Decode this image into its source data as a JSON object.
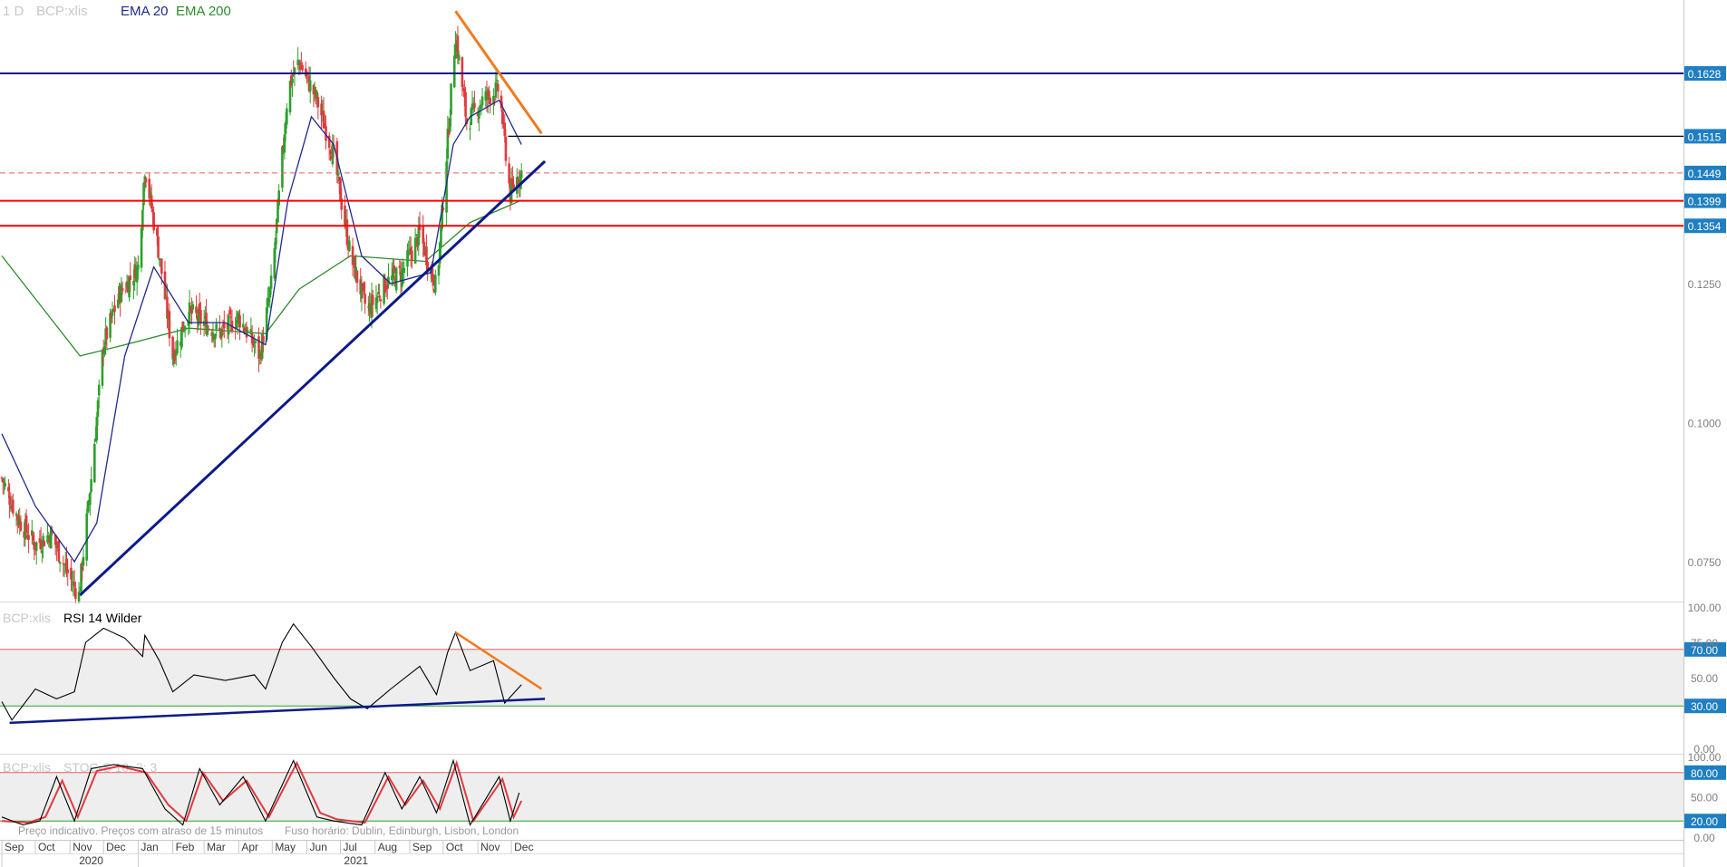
{
  "colors": {
    "up": "#2ca02c",
    "down": "#e0393e",
    "ema20": "#1f2a8a",
    "ema200": "#2e8b2e",
    "support_line": "#0b1a8a",
    "resistance_red": "#ff0000",
    "orange_trend": "#f07a20",
    "price_badge": "#1f7fc1",
    "osc_band": "#eeeeee",
    "rsi_line": "#000000",
    "stoch_k": "#000000",
    "stoch_d": "#e0393e"
  },
  "chart_data": [
    {
      "type": "candlestick",
      "panel": "price",
      "interval_label": "1 D",
      "symbol": "BCP:xlis",
      "indicators": [
        "EMA 20",
        "EMA 200"
      ],
      "ylim": [
        0.068,
        0.176
      ],
      "y_ticks": [
        "0.0750",
        "0.1000",
        "0.1250"
      ],
      "price_levels": [
        {
          "value": 0.1628,
          "label": "0.1628",
          "style": "solid",
          "color": "#0b1a8a"
        },
        {
          "value": 0.1515,
          "label": "0.1515",
          "style": "badge",
          "color": "#1f7fc1"
        },
        {
          "value": 0.1449,
          "label": "0.1449",
          "style": "dashed",
          "color": "#e06060"
        },
        {
          "value": 0.1399,
          "label": "0.1399",
          "style": "solid",
          "color": "#ff0000"
        },
        {
          "value": 0.1354,
          "label": "0.1354",
          "style": "solid",
          "color": "#ff0000"
        }
      ],
      "months": [
        "Sep",
        "Oct",
        "Nov",
        "Dec",
        "Jan",
        "Feb",
        "Mar",
        "Apr",
        "May",
        "Jun",
        "Jul",
        "Aug",
        "Sep",
        "Oct",
        "Nov",
        "Dec"
      ],
      "years": [
        "2020",
        "2021"
      ],
      "close_path": [
        [
          "2020-09-01",
          0.09
        ],
        [
          "2020-09-15",
          0.083
        ],
        [
          "2020-10-01",
          0.078
        ],
        [
          "2020-10-15",
          0.08
        ],
        [
          "2020-11-01",
          0.072
        ],
        [
          "2020-11-09",
          0.069
        ],
        [
          "2020-11-20",
          0.09
        ],
        [
          "2020-12-01",
          0.114
        ],
        [
          "2020-12-15",
          0.123
        ],
        [
          "2021-01-01",
          0.128
        ],
        [
          "2021-01-07",
          0.146
        ],
        [
          "2021-01-20",
          0.13
        ],
        [
          "2021-02-01",
          0.112
        ],
        [
          "2021-02-15",
          0.12
        ],
        [
          "2021-03-01",
          0.118
        ],
        [
          "2021-03-15",
          0.116
        ],
        [
          "2021-04-01",
          0.119
        ],
        [
          "2021-04-20",
          0.112
        ],
        [
          "2021-05-01",
          0.126
        ],
        [
          "2021-05-15",
          0.16
        ],
        [
          "2021-05-25",
          0.165
        ],
        [
          "2021-06-10",
          0.158
        ],
        [
          "2021-06-25",
          0.148
        ],
        [
          "2021-07-10",
          0.13
        ],
        [
          "2021-07-25",
          0.12
        ],
        [
          "2021-08-10",
          0.125
        ],
        [
          "2021-08-25",
          0.127
        ],
        [
          "2021-09-10",
          0.134
        ],
        [
          "2021-09-25",
          0.124
        ],
        [
          "2021-10-01",
          0.14
        ],
        [
          "2021-10-12",
          0.17
        ],
        [
          "2021-10-22",
          0.154
        ],
        [
          "2021-11-05",
          0.158
        ],
        [
          "2021-11-20",
          0.16
        ],
        [
          "2021-11-30",
          0.141
        ],
        [
          "2021-12-06",
          0.144
        ],
        [
          "2021-12-10",
          0.145
        ]
      ],
      "ema20_path": [
        [
          "2020-09-01",
          0.098
        ],
        [
          "2020-10-01",
          0.085
        ],
        [
          "2020-11-05",
          0.075
        ],
        [
          "2020-11-25",
          0.082
        ],
        [
          "2020-12-20",
          0.112
        ],
        [
          "2021-01-15",
          0.128
        ],
        [
          "2021-02-15",
          0.118
        ],
        [
          "2021-03-20",
          0.118
        ],
        [
          "2021-04-25",
          0.114
        ],
        [
          "2021-05-15",
          0.14
        ],
        [
          "2021-06-05",
          0.155
        ],
        [
          "2021-06-25",
          0.15
        ],
        [
          "2021-07-20",
          0.13
        ],
        [
          "2021-08-15",
          0.125
        ],
        [
          "2021-09-20",
          0.127
        ],
        [
          "2021-10-10",
          0.15
        ],
        [
          "2021-10-25",
          0.155
        ],
        [
          "2021-11-20",
          0.158
        ],
        [
          "2021-12-10",
          0.15
        ]
      ],
      "ema200_path": [
        [
          "2020-09-01",
          0.13
        ],
        [
          "2020-11-10",
          0.112
        ],
        [
          "2020-12-20",
          0.114
        ],
        [
          "2021-02-15",
          0.117
        ],
        [
          "2021-04-25",
          0.116
        ],
        [
          "2021-05-25",
          0.124
        ],
        [
          "2021-07-10",
          0.13
        ],
        [
          "2021-09-15",
          0.129
        ],
        [
          "2021-10-25",
          0.136
        ],
        [
          "2021-12-10",
          0.14
        ]
      ],
      "trendlines": [
        {
          "name": "ascending support",
          "from": [
            "2020-11-10",
            0.069
          ],
          "to": [
            "2021-12-31",
            0.147
          ],
          "color": "#0b1a8a"
        },
        {
          "name": "descending resistance",
          "from": [
            "2021-10-12",
            0.174
          ],
          "to": [
            "2021-12-28",
            0.152
          ],
          "color": "#f07a20"
        }
      ]
    },
    {
      "type": "line",
      "panel": "rsi",
      "symbol": "BCP:xlis",
      "title": "RSI 14 Wilder",
      "ylim": [
        0,
        100
      ],
      "y_ticks": [
        "100.00",
        "75.00",
        "50.00",
        "0.00"
      ],
      "levels": [
        {
          "value": 70,
          "label": "70.00"
        },
        {
          "value": 30,
          "label": "30.00"
        }
      ],
      "path": [
        [
          "2020-09-01",
          33
        ],
        [
          "2020-09-10",
          20
        ],
        [
          "2020-10-01",
          42
        ],
        [
          "2020-10-20",
          35
        ],
        [
          "2020-11-05",
          40
        ],
        [
          "2020-11-15",
          75
        ],
        [
          "2020-12-01",
          85
        ],
        [
          "2020-12-20",
          78
        ],
        [
          "2021-01-05",
          65
        ],
        [
          "2021-01-07",
          80
        ],
        [
          "2021-01-20",
          62
        ],
        [
          "2021-02-01",
          40
        ],
        [
          "2021-02-20",
          52
        ],
        [
          "2021-03-20",
          48
        ],
        [
          "2021-04-15",
          52
        ],
        [
          "2021-04-25",
          42
        ],
        [
          "2021-05-10",
          75
        ],
        [
          "2021-05-20",
          88
        ],
        [
          "2021-06-05",
          72
        ],
        [
          "2021-06-25",
          50
        ],
        [
          "2021-07-10",
          35
        ],
        [
          "2021-07-25",
          28
        ],
        [
          "2021-08-15",
          42
        ],
        [
          "2021-09-10",
          58
        ],
        [
          "2021-09-25",
          38
        ],
        [
          "2021-10-05",
          68
        ],
        [
          "2021-10-12",
          82
        ],
        [
          "2021-10-25",
          55
        ],
        [
          "2021-11-15",
          62
        ],
        [
          "2021-11-25",
          32
        ],
        [
          "2021-12-10",
          45
        ]
      ],
      "trendlines": [
        {
          "from": [
            "2020-09-08",
            18
          ],
          "to": [
            "2021-12-31",
            35
          ],
          "color": "#0b1a8a"
        },
        {
          "from": [
            "2021-10-12",
            82
          ],
          "to": [
            "2021-12-28",
            42
          ],
          "color": "#f07a20"
        }
      ]
    },
    {
      "type": "line",
      "panel": "stochastic",
      "symbol": "BCP:xlis",
      "title": "STOC-S 10; 3; 3",
      "ylim": [
        0,
        100
      ],
      "y_ticks": [
        "100.00",
        "50.00",
        "0.00"
      ],
      "levels": [
        {
          "value": 80,
          "label": "80.00"
        },
        {
          "value": 20,
          "label": "20.00"
        }
      ],
      "series": [
        {
          "name": "%K",
          "values": [
            [
              "2020-09-01",
              25
            ],
            [
              "2020-09-20",
              15
            ],
            [
              "2020-10-05",
              20
            ],
            [
              "2020-10-20",
              75
            ],
            [
              "2020-11-05",
              20
            ],
            [
              "2020-11-20",
              85
            ],
            [
              "2020-12-10",
              90
            ],
            [
              "2021-01-05",
              85
            ],
            [
              "2021-01-25",
              35
            ],
            [
              "2021-02-10",
              15
            ],
            [
              "2021-02-25",
              85
            ],
            [
              "2021-03-15",
              40
            ],
            [
              "2021-04-05",
              75
            ],
            [
              "2021-04-25",
              20
            ],
            [
              "2021-05-20",
              95
            ],
            [
              "2021-06-10",
              25
            ],
            [
              "2021-06-25",
              20
            ],
            [
              "2021-07-20",
              15
            ],
            [
              "2021-08-10",
              80
            ],
            [
              "2021-08-25",
              35
            ],
            [
              "2021-09-10",
              75
            ],
            [
              "2021-09-25",
              30
            ],
            [
              "2021-10-10",
              95
            ],
            [
              "2021-10-25",
              15
            ],
            [
              "2021-11-20",
              75
            ],
            [
              "2021-11-30",
              20
            ],
            [
              "2021-12-08",
              55
            ]
          ]
        },
        {
          "name": "%D",
          "values": [
            [
              "2020-09-01",
              20
            ],
            [
              "2020-09-25",
              18
            ],
            [
              "2020-10-10",
              25
            ],
            [
              "2020-10-25",
              70
            ],
            [
              "2020-11-08",
              25
            ],
            [
              "2020-11-25",
              82
            ],
            [
              "2020-12-15",
              88
            ],
            [
              "2021-01-08",
              80
            ],
            [
              "2021-01-28",
              40
            ],
            [
              "2021-02-13",
              20
            ],
            [
              "2021-02-28",
              80
            ],
            [
              "2021-03-18",
              45
            ],
            [
              "2021-04-08",
              70
            ],
            [
              "2021-04-28",
              25
            ],
            [
              "2021-05-23",
              92
            ],
            [
              "2021-06-13",
              30
            ],
            [
              "2021-06-28",
              22
            ],
            [
              "2021-07-23",
              18
            ],
            [
              "2021-08-13",
              75
            ],
            [
              "2021-08-28",
              40
            ],
            [
              "2021-09-13",
              70
            ],
            [
              "2021-09-28",
              35
            ],
            [
              "2021-10-13",
              92
            ],
            [
              "2021-10-28",
              20
            ],
            [
              "2021-11-23",
              72
            ],
            [
              "2021-12-03",
              25
            ],
            [
              "2021-12-10",
              45
            ]
          ]
        }
      ]
    }
  ],
  "footer": {
    "notice": "Preço indicativo. Preços com atraso de 15 minutos",
    "timezone": "Fuso horário: Dublin, Edinburgh, Lisbon, London"
  }
}
